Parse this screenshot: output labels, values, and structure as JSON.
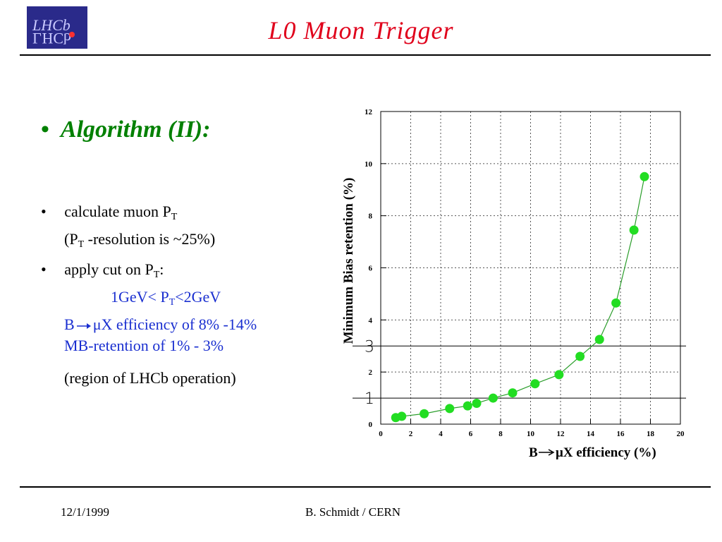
{
  "slide": {
    "title": "L0  Muon  Trigger",
    "logo_text": "LHCb",
    "heading": "Algorithm (II):",
    "bullets": [
      {
        "text": "calculate muon P",
        "sub": "T"
      },
      {
        "text_pre": "(P",
        "sub": "T",
        "text_post": " -resolution is ~25%)"
      },
      {
        "text": "apply cut on P",
        "sub": "T",
        "text_post": ":"
      }
    ],
    "cut": {
      "pre": "1GeV< P",
      "sub": "T",
      "post": "<2GeV"
    },
    "efficiency_line": {
      "pre": "B",
      "post": "μX efficiency of 8% -14%"
    },
    "retention_line": "MB-retention of  1% - 3%",
    "region_line": "(region of LHCb operation)",
    "footer_date": "12/1/1999",
    "footer_author": "B. Schmidt / CERN"
  },
  "colors": {
    "title": "#e0001b",
    "heading": "#008000",
    "highlight": "#1a2fd0",
    "points": "#22dd22",
    "line": "#2a9d2a"
  },
  "chart_data": {
    "type": "line",
    "xlabel_pre": "B",
    "xlabel_post": "μX efficiency (%)",
    "ylabel": "Minimum Bias retention (%)",
    "xlim": [
      0,
      20
    ],
    "ylim": [
      0,
      12
    ],
    "xticks": [
      0,
      2,
      4,
      6,
      8,
      10,
      12,
      14,
      16,
      18,
      20
    ],
    "yticks": [
      0,
      2,
      4,
      6,
      8,
      10,
      12
    ],
    "grid": true,
    "series": [
      {
        "x": [
          1.0,
          1.4,
          2.9,
          4.6,
          5.8,
          6.4,
          7.5,
          8.8,
          10.3,
          11.9,
          13.3,
          14.6,
          15.7,
          16.9,
          17.6
        ],
        "y": [
          0.25,
          0.3,
          0.4,
          0.6,
          0.7,
          0.8,
          1.0,
          1.2,
          1.55,
          1.9,
          2.6,
          3.25,
          4.65,
          7.45,
          9.5
        ]
      }
    ],
    "reference_lines": [
      {
        "y": 1,
        "label": "1"
      },
      {
        "y": 3,
        "label": "3"
      }
    ]
  }
}
